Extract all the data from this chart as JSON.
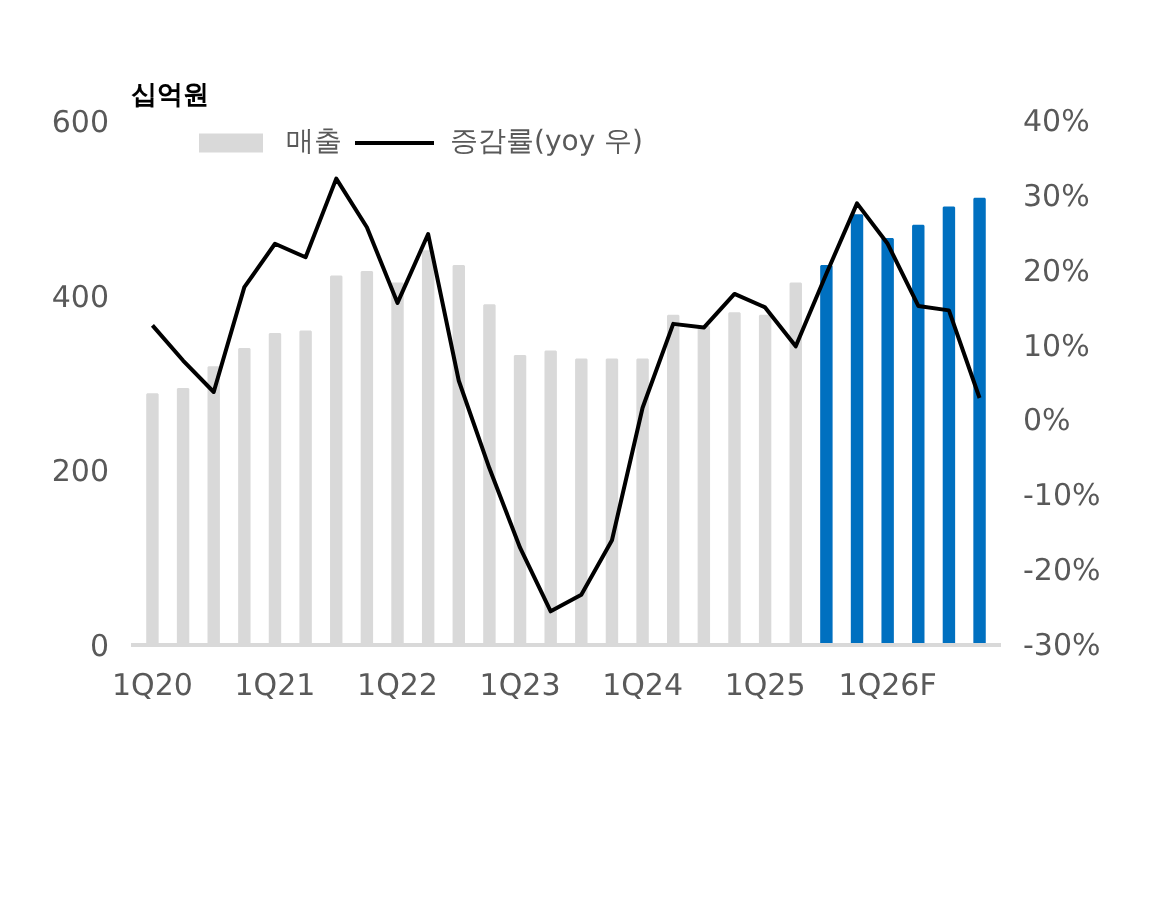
{
  "chart_data": {
    "type": "bar",
    "ylabel": "십억원",
    "legend": "top left",
    "grid": false,
    "categories": [
      "1Q20",
      null,
      null,
      null,
      "1Q21",
      null,
      null,
      null,
      "1Q22",
      null,
      null,
      null,
      "1Q23",
      null,
      null,
      null,
      "1Q24",
      null,
      null,
      null,
      "1Q25",
      null,
      null,
      null,
      "1Q26F",
      null,
      null,
      null
    ],
    "ylim": [
      0,
      600
    ],
    "yticks": [
      0,
      200,
      400,
      600
    ],
    "y2lim": [
      -30,
      40
    ],
    "y2ticks": [
      {
        "value": -30,
        "label": "-30%"
      },
      {
        "value": -20,
        "label": "-20%"
      },
      {
        "value": -10,
        "label": "-10%"
      },
      {
        "value": 0,
        "label": "0%"
      },
      {
        "value": 10,
        "label": "10%"
      },
      {
        "value": 20,
        "label": "20%"
      },
      {
        "value": 30,
        "label": "30%"
      },
      {
        "value": 40,
        "label": "40%"
      }
    ],
    "series": [
      {
        "name": "매출",
        "color": "#d9d9d9",
        "colors": [
          "#d9d9d9",
          "#d9d9d9",
          "#d9d9d9",
          "#d9d9d9",
          "#d9d9d9",
          "#d9d9d9",
          "#d9d9d9",
          "#d9d9d9",
          "#d9d9d9",
          "#d9d9d9",
          "#d9d9d9",
          "#d9d9d9",
          "#d9d9d9",
          "#d9d9d9",
          "#d9d9d9",
          "#d9d9d9",
          "#d9d9d9",
          "#d9d9d9",
          "#d9d9d9",
          "#d9d9d9",
          "#d9d9d9",
          "#d9d9d9",
          "#0070c0",
          "#0070c0",
          "#0070c0",
          "#0070c0",
          "#0070c0",
          "#0070c0"
        ],
        "values": [
          287,
          293,
          318,
          339,
          356,
          359,
          422,
          427,
          414,
          451,
          434,
          389,
          331,
          336,
          327,
          327,
          327,
          377,
          364,
          380,
          377,
          414,
          434,
          492,
          465,
          480,
          501,
          511
        ]
      },
      {
        "name": "증감률(yoy 우)",
        "type": "line",
        "axis": "y2",
        "color": "#000000",
        "line_style": "solid",
        "values": [
          12.7,
          8,
          3.8,
          17.8,
          23.6,
          21.8,
          32.3,
          25.8,
          15.7,
          24.9,
          5.3,
          -6.4,
          -17,
          -25.5,
          -23.3,
          -16,
          1.7,
          12.9,
          12.4,
          16.9,
          15.1,
          9.9,
          19.6,
          29,
          23.6,
          15.3,
          14.7,
          3
        ]
      }
    ]
  }
}
